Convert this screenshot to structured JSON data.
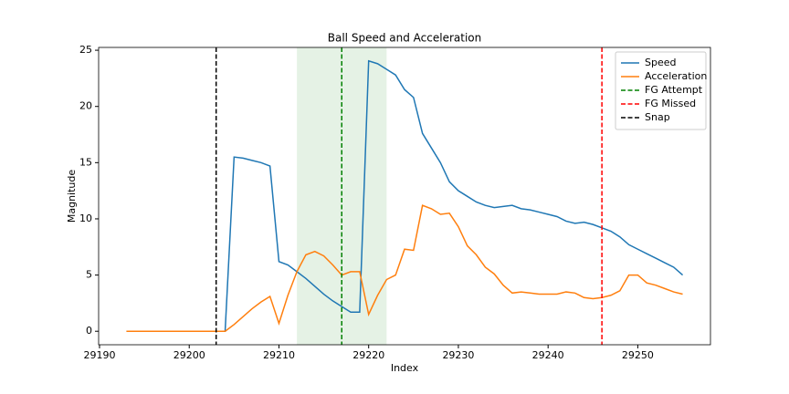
{
  "chart_data": {
    "type": "line",
    "title": "Ball Speed and Acceleration",
    "xlabel": "Index",
    "ylabel": "Magnitude",
    "x": [
      29193,
      29194,
      29195,
      29196,
      29197,
      29198,
      29199,
      29200,
      29201,
      29202,
      29203,
      29204,
      29205,
      29206,
      29207,
      29208,
      29209,
      29210,
      29211,
      29212,
      29213,
      29214,
      29215,
      29216,
      29217,
      29218,
      29219,
      29220,
      29221,
      29222,
      29223,
      29224,
      29225,
      29226,
      29227,
      29228,
      29229,
      29230,
      29231,
      29232,
      29233,
      29234,
      29235,
      29236,
      29237,
      29238,
      29239,
      29240,
      29241,
      29242,
      29243,
      29244,
      29245,
      29246,
      29247,
      29248,
      29249,
      29250,
      29251,
      29252,
      29253,
      29254,
      29255
    ],
    "series": [
      {
        "name": "Speed",
        "color": "#1f77b4",
        "values": [
          0,
          0,
          0,
          0,
          0,
          0,
          0,
          0,
          0,
          0,
          0,
          0,
          15.5,
          15.4,
          15.2,
          15.0,
          14.7,
          6.2,
          5.9,
          5.3,
          4.7,
          4.0,
          3.3,
          2.7,
          2.2,
          1.7,
          1.7,
          24.05,
          23.8,
          23.3,
          22.8,
          21.5,
          20.8,
          17.6,
          16.3,
          15.0,
          13.3,
          12.5,
          12.0,
          11.5,
          11.2,
          11.0,
          11.1,
          11.2,
          10.9,
          10.8,
          10.6,
          10.4,
          10.2,
          9.8,
          9.6,
          9.7,
          9.5,
          9.2,
          8.9,
          8.4,
          7.7,
          7.3,
          6.9,
          6.5,
          6.1,
          5.7,
          5.0
        ]
      },
      {
        "name": "Acceleration",
        "color": "#ff7f0e",
        "values": [
          0,
          0,
          0,
          0,
          0,
          0,
          0,
          0,
          0,
          0,
          0,
          0,
          0.6,
          1.3,
          2.0,
          2.6,
          3.1,
          0.7,
          3.2,
          5.3,
          6.8,
          7.1,
          6.7,
          5.9,
          5.0,
          5.3,
          5.3,
          1.5,
          3.2,
          4.6,
          5.0,
          7.3,
          7.2,
          11.2,
          10.9,
          10.4,
          10.5,
          9.3,
          7.6,
          6.8,
          5.7,
          5.1,
          4.1,
          3.4,
          3.5,
          3.4,
          3.3,
          3.3,
          3.3,
          3.5,
          3.4,
          3.0,
          2.9,
          3.0,
          3.2,
          3.6,
          5.0,
          5.0,
          4.3,
          4.1,
          3.8,
          3.5,
          3.3
        ]
      }
    ],
    "vlines": [
      {
        "name": "FG Attempt",
        "x": 29217,
        "color": "#008000"
      },
      {
        "name": "FG Missed",
        "x": 29246,
        "color": "#ff0000"
      },
      {
        "name": "Snap",
        "x": 29203,
        "color": "#000000"
      }
    ],
    "span": {
      "x": [
        29212,
        29222
      ],
      "color": "#008000"
    },
    "xlim": [
      29189.9,
      29258.1
    ],
    "ylim": [
      -1.2,
      25.25
    ],
    "xticks": [
      29190,
      29200,
      29210,
      29220,
      29230,
      29240,
      29250
    ],
    "yticks": [
      0,
      5,
      10,
      15,
      20,
      25
    ],
    "legend": "upper right"
  }
}
